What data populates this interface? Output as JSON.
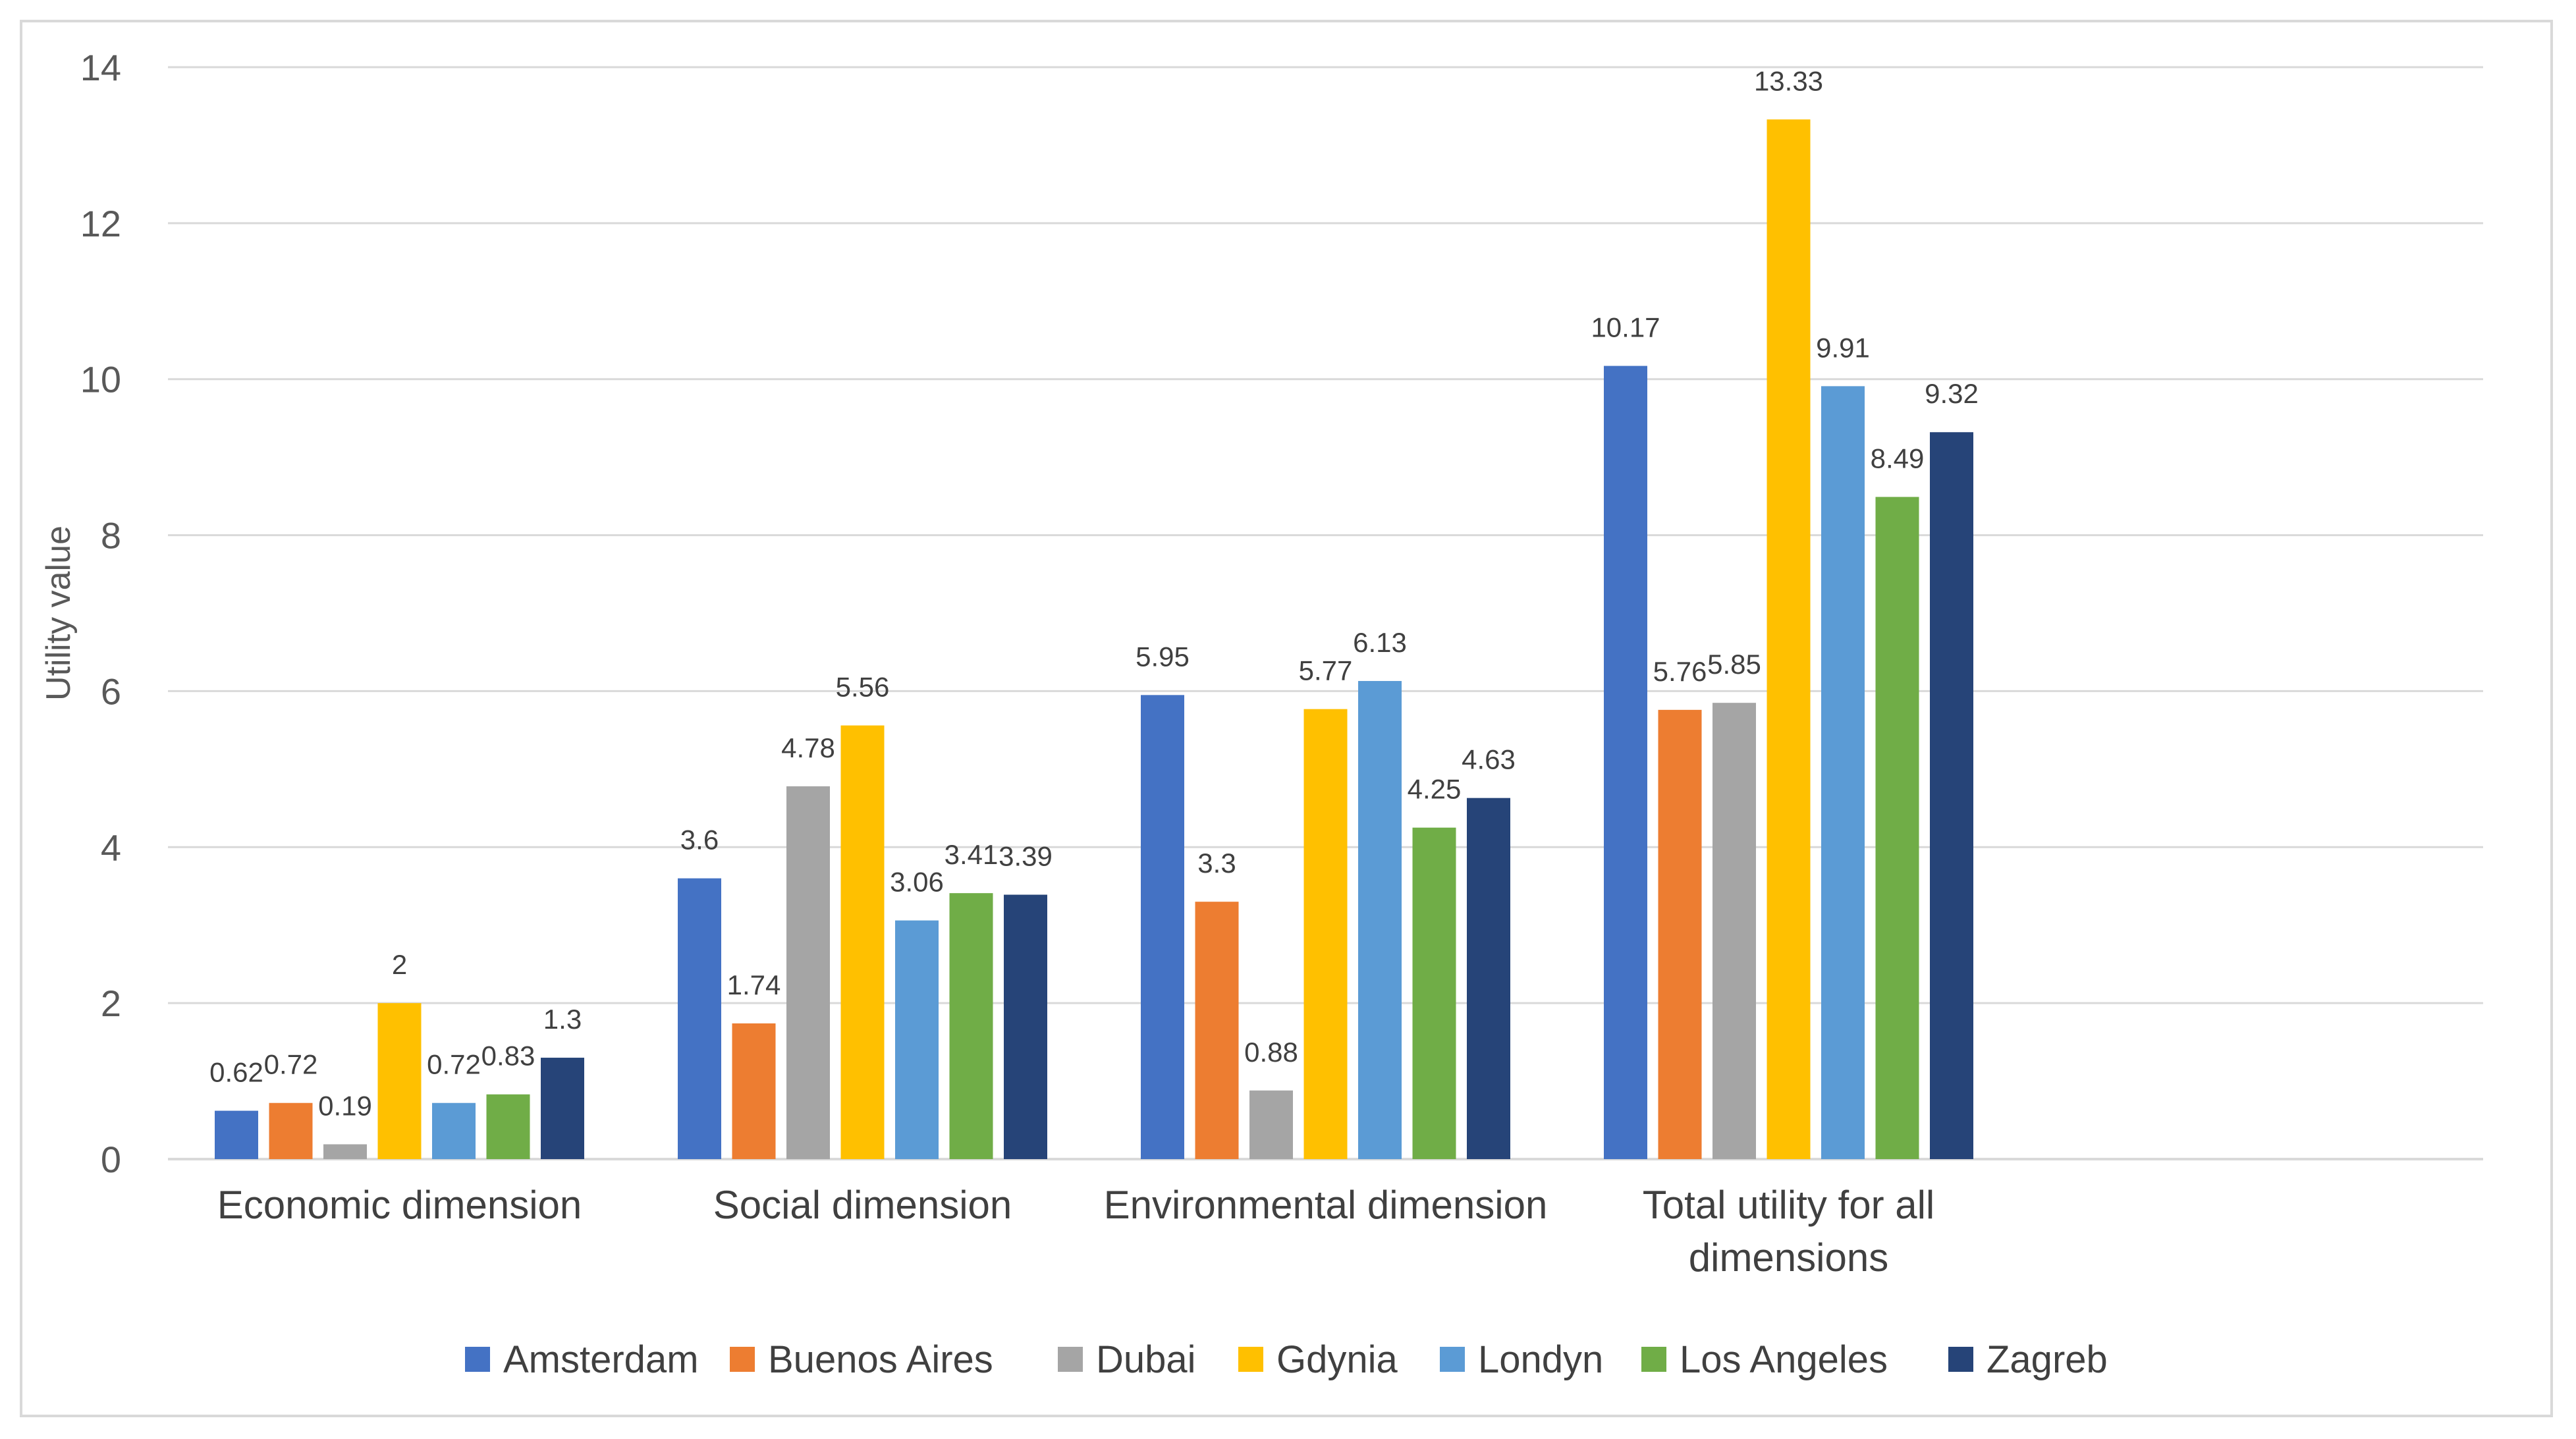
{
  "chart_data": {
    "type": "bar",
    "title": "",
    "xlabel": "",
    "ylabel": "Utility value",
    "ylim": [
      0,
      14
    ],
    "yticks": [
      "0",
      "2",
      "4",
      "6",
      "8",
      "10",
      "12",
      "14"
    ],
    "grid": true,
    "legend_position": "bottom",
    "categories": [
      [
        "Economic dimension"
      ],
      [
        "Social dimension"
      ],
      [
        "Environmental dimension"
      ],
      [
        "Total utility for all",
        "dimensions"
      ]
    ],
    "series": [
      {
        "name": "Amsterdam",
        "color": "#4472C4",
        "values": [
          0.62,
          3.6,
          5.95,
          10.17
        ]
      },
      {
        "name": "Buenos Aires",
        "color": "#ED7D31",
        "values": [
          0.72,
          1.74,
          3.3,
          5.76
        ]
      },
      {
        "name": "Dubai",
        "color": "#A5A5A5",
        "values": [
          0.19,
          4.78,
          0.88,
          5.85
        ]
      },
      {
        "name": "Gdynia",
        "color": "#FFC000",
        "values": [
          2,
          5.56,
          5.77,
          13.33
        ]
      },
      {
        "name": "Londyn",
        "color": "#5B9BD5",
        "values": [
          0.72,
          3.06,
          6.13,
          9.91
        ]
      },
      {
        "name": "Los Angeles",
        "color": "#70AD47",
        "values": [
          0.83,
          3.41,
          4.25,
          8.49
        ]
      },
      {
        "name": "Zagreb",
        "color": "#264478",
        "values": [
          1.3,
          3.39,
          4.63,
          9.32
        ]
      }
    ]
  }
}
